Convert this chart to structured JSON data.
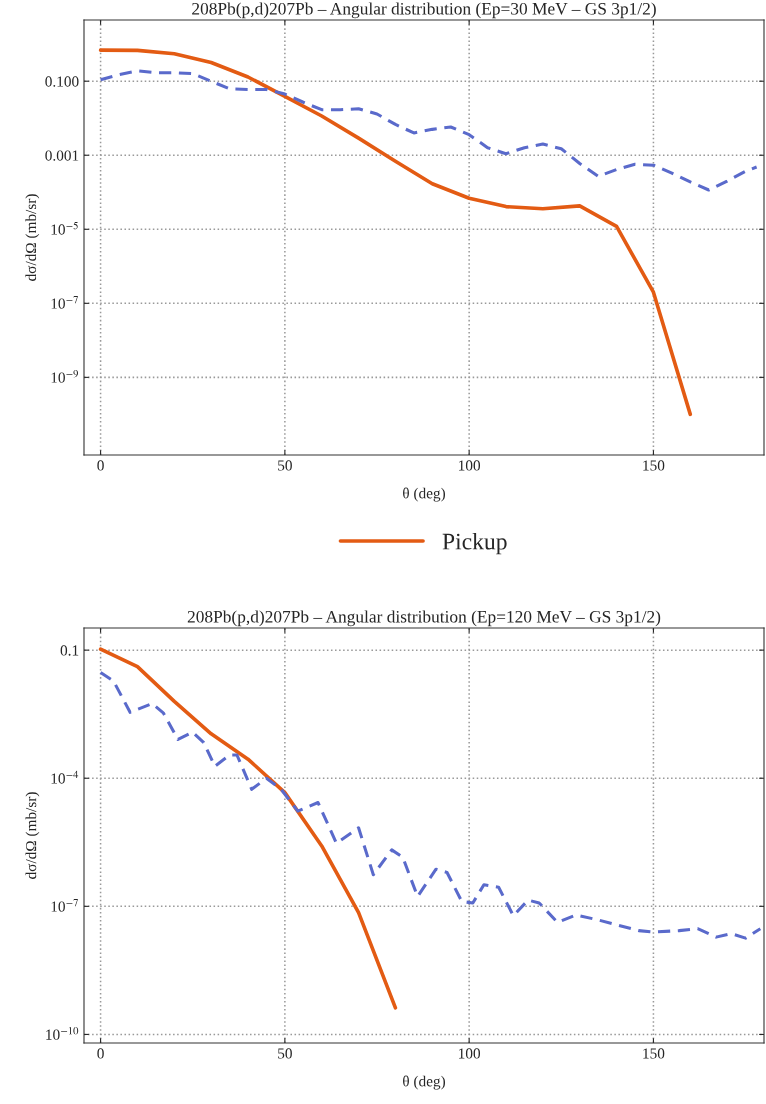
{
  "chart_data": [
    {
      "type": "line",
      "title": "208Pb(p,d)207Pb – Angular distribution (Ep=30 MeV – GS 3p1/2)",
      "xlabel": "θ (deg)",
      "ylabel": "dσ/dΩ (mb/sr)",
      "log": "y",
      "grid": true,
      "legend": "bottom",
      "xlim": [
        -4.5,
        180
      ],
      "xticks": [
        0,
        50,
        100,
        150
      ],
      "ylim": [
        8e-12,
        4.5
      ],
      "yticks": [
        {
          "value": 0.1,
          "label": "0.100"
        },
        {
          "value": 0.001,
          "label": "0.001"
        },
        {
          "value": 1e-05,
          "label": "10$^{−5}$"
        },
        {
          "value": 1e-07,
          "label": "10$^{−7}$"
        },
        {
          "value": 1e-09,
          "label": "10$^{−9}$"
        }
      ],
      "series": [
        {
          "name": "Pickup",
          "color": "#e35b13",
          "line_style": "solid",
          "x": [
            0,
            10,
            20,
            30,
            40,
            50,
            60,
            70,
            80,
            90,
            100,
            110,
            120,
            130,
            140,
            150,
            160
          ],
          "values": [
            0.69,
            0.68,
            0.55,
            0.32,
            0.13,
            0.039,
            0.0115,
            0.0029,
            0.00069,
            0.00017,
            6.9e-05,
            4.1e-05,
            3.6e-05,
            4.3e-05,
            1.2e-05,
            2e-07,
            1e-10
          ]
        },
        {
          "color": "#5a6acb",
          "line_style": "dashed",
          "x": [
            0,
            5,
            10,
            15,
            20,
            25,
            30,
            35,
            40,
            45,
            50,
            55,
            60,
            65,
            70,
            75,
            80,
            85,
            90,
            95,
            100,
            105,
            110,
            115,
            120,
            125,
            130,
            135,
            140,
            145,
            150,
            155,
            160,
            165,
            170,
            175,
            178
          ],
          "values": [
            0.11,
            0.15,
            0.19,
            0.17,
            0.17,
            0.16,
            0.1,
            0.062,
            0.06,
            0.06,
            0.045,
            0.027,
            0.017,
            0.017,
            0.018,
            0.013,
            0.0068,
            0.004,
            0.005,
            0.0058,
            0.0036,
            0.0016,
            0.0011,
            0.0016,
            0.002,
            0.0015,
            0.0006,
            0.00027,
            0.00041,
            0.00057,
            0.00054,
            0.00033,
            0.00019,
            0.000115,
            0.0002,
            0.00037,
            0.00048
          ]
        }
      ]
    },
    {
      "type": "line",
      "title": "208Pb(p,d)207Pb – Angular distribution (Ep=120 MeV – GS 3p1/2)",
      "xlabel": "θ (deg)",
      "ylabel": "dσ/dΩ (mb/sr)",
      "log": "y",
      "grid": true,
      "xlim": [
        -4.5,
        180
      ],
      "xticks": [
        0,
        50,
        100,
        150
      ],
      "ylim": [
        6.3e-11,
        0.33
      ],
      "yticks": [
        {
          "value": 0.1,
          "label": "0.1"
        },
        {
          "value": 0.0001,
          "label": "10$^{−4}$"
        },
        {
          "value": 1e-07,
          "label": "10$^{−7}$"
        },
        {
          "value": 1e-10,
          "label": "10$^{−10}$"
        }
      ],
      "series": [
        {
          "color": "#e35b13",
          "line_style": "solid",
          "x": [
            0,
            10,
            20,
            30,
            40,
            50,
            60,
            70,
            80
          ],
          "values": [
            0.105,
            0.041,
            0.0063,
            0.0011,
            0.00028,
            4.6e-05,
            2.6e-06,
            7.1e-08,
            4.2e-10
          ]
        },
        {
          "color": "#5a6acb",
          "line_style": "dashed",
          "x": [
            0,
            3.5,
            8,
            14,
            17,
            21,
            25,
            28,
            31,
            35,
            37,
            41,
            45,
            49,
            53.5,
            59,
            64,
            70,
            74,
            79,
            82,
            86,
            91,
            94,
            98,
            101,
            104,
            108,
            112,
            116,
            119,
            124,
            129,
            135,
            140,
            146,
            150,
            157,
            162,
            167,
            171,
            175,
            179
          ],
          "values": [
            0.03,
            0.019,
            0.0035,
            0.0056,
            0.0034,
            0.00081,
            0.0012,
            0.00068,
            0.00019,
            0.00035,
            0.00035,
            5.5e-05,
            0.0001,
            5.5e-05,
            1.7e-05,
            2.7e-05,
            3e-06,
            6.9e-06,
            5.5e-07,
            2.1e-06,
            1.4e-06,
            1.7e-07,
            7.4e-07,
            6.2e-07,
            1.3e-07,
            1.2e-07,
            3.2e-07,
            2.8e-07,
            6e-08,
            1.4e-07,
            1.2e-07,
            4.2e-08,
            6.3e-08,
            4.8e-08,
            3.7e-08,
            2.7e-08,
            2.5e-08,
            2.7e-08,
            3e-08,
            1.9e-08,
            2.3e-08,
            1.8e-08,
            3e-08
          ]
        }
      ]
    }
  ]
}
